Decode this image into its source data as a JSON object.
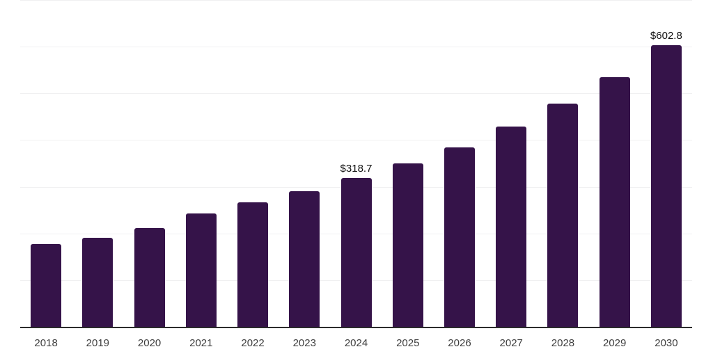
{
  "chart_data": {
    "type": "bar",
    "categories": [
      "2018",
      "2019",
      "2020",
      "2021",
      "2022",
      "2023",
      "2024",
      "2025",
      "2026",
      "2027",
      "2028",
      "2029",
      "2030"
    ],
    "values": [
      177,
      190,
      212,
      243,
      266,
      291,
      318.7,
      350,
      385,
      429,
      478,
      535,
      602.8
    ],
    "value_labels": {
      "2024": "$318.7",
      "2030": "$602.8"
    },
    "ylim": [
      0,
      700
    ],
    "gridline_values": [
      100,
      200,
      300,
      400,
      500,
      600,
      700
    ],
    "grid": true,
    "legend_position": "none",
    "colors": {
      "bar": "#351349",
      "axis_line": "#2b2b2b",
      "gridline": "#f0f0f1",
      "tick_label": "#3e3e3e",
      "value_label": "#101010",
      "background": "#ffffff"
    }
  }
}
